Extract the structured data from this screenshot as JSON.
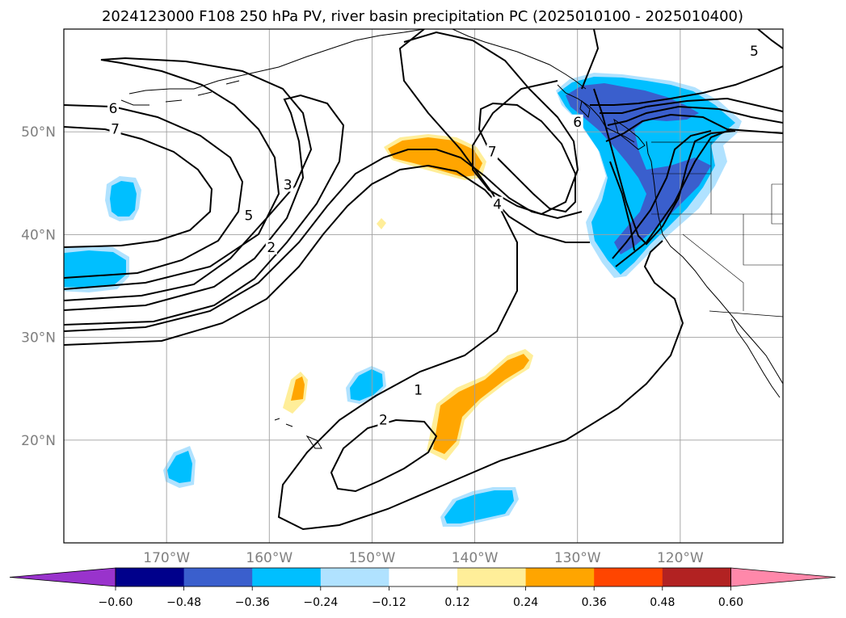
{
  "chart_data": {
    "type": "contour-map",
    "title": "2024123000 F108 250 hPa PV, river basin precipitation PC (2025010100 - 2025010400)",
    "projection": "equirectangular",
    "lon_range": [
      -180,
      -110
    ],
    "lat_range": [
      10,
      60
    ],
    "lon_ticks": [
      {
        "value": -170,
        "label": "170°W"
      },
      {
        "value": -160,
        "label": "160°W"
      },
      {
        "value": -150,
        "label": "150°W"
      },
      {
        "value": -140,
        "label": "140°W"
      },
      {
        "value": -130,
        "label": "130°W"
      },
      {
        "value": -120,
        "label": "120°W"
      }
    ],
    "lat_ticks": [
      {
        "value": 20,
        "label": "20°N"
      },
      {
        "value": 30,
        "label": "30°N"
      },
      {
        "value": 40,
        "label": "40°N"
      },
      {
        "value": 50,
        "label": "50°N"
      }
    ],
    "grid": true,
    "colorbar": {
      "orientation": "horizontal",
      "extend": "both",
      "colors": [
        "#9933cc",
        "#00008b",
        "#3a5fcd",
        "#00bfff",
        "#b0e2ff",
        "#ffffff",
        "#ffee99",
        "#ffa500",
        "#ff4500",
        "#b22222",
        "#ff88aa"
      ],
      "tick_values": [
        -0.6,
        -0.48,
        -0.36,
        -0.24,
        -0.12,
        0.12,
        0.24,
        0.36,
        0.48,
        0.6
      ],
      "tick_labels": [
        "−0.60",
        "−0.48",
        "−0.36",
        "−0.24",
        "−0.12",
        "0.12",
        "0.24",
        "0.36",
        "0.48",
        "0.60"
      ]
    },
    "contour_labels": [
      {
        "text": "6",
        "lon": -175.2,
        "lat": 52.2
      },
      {
        "text": "7",
        "lon": -175.0,
        "lat": 50.2
      },
      {
        "text": "5",
        "lon": -162.0,
        "lat": 41.8
      },
      {
        "text": "3",
        "lon": -158.2,
        "lat": 44.8
      },
      {
        "text": "2",
        "lon": -159.8,
        "lat": 38.7
      },
      {
        "text": "7",
        "lon": -138.3,
        "lat": 48.0
      },
      {
        "text": "6",
        "lon": -130.0,
        "lat": 50.9
      },
      {
        "text": "4",
        "lon": -137.8,
        "lat": 42.9
      },
      {
        "text": "1",
        "lon": -145.5,
        "lat": 24.8
      },
      {
        "text": "2",
        "lon": -148.9,
        "lat": 21.9
      },
      {
        "text": "5",
        "lon": -112.8,
        "lat": 57.8
      }
    ]
  }
}
